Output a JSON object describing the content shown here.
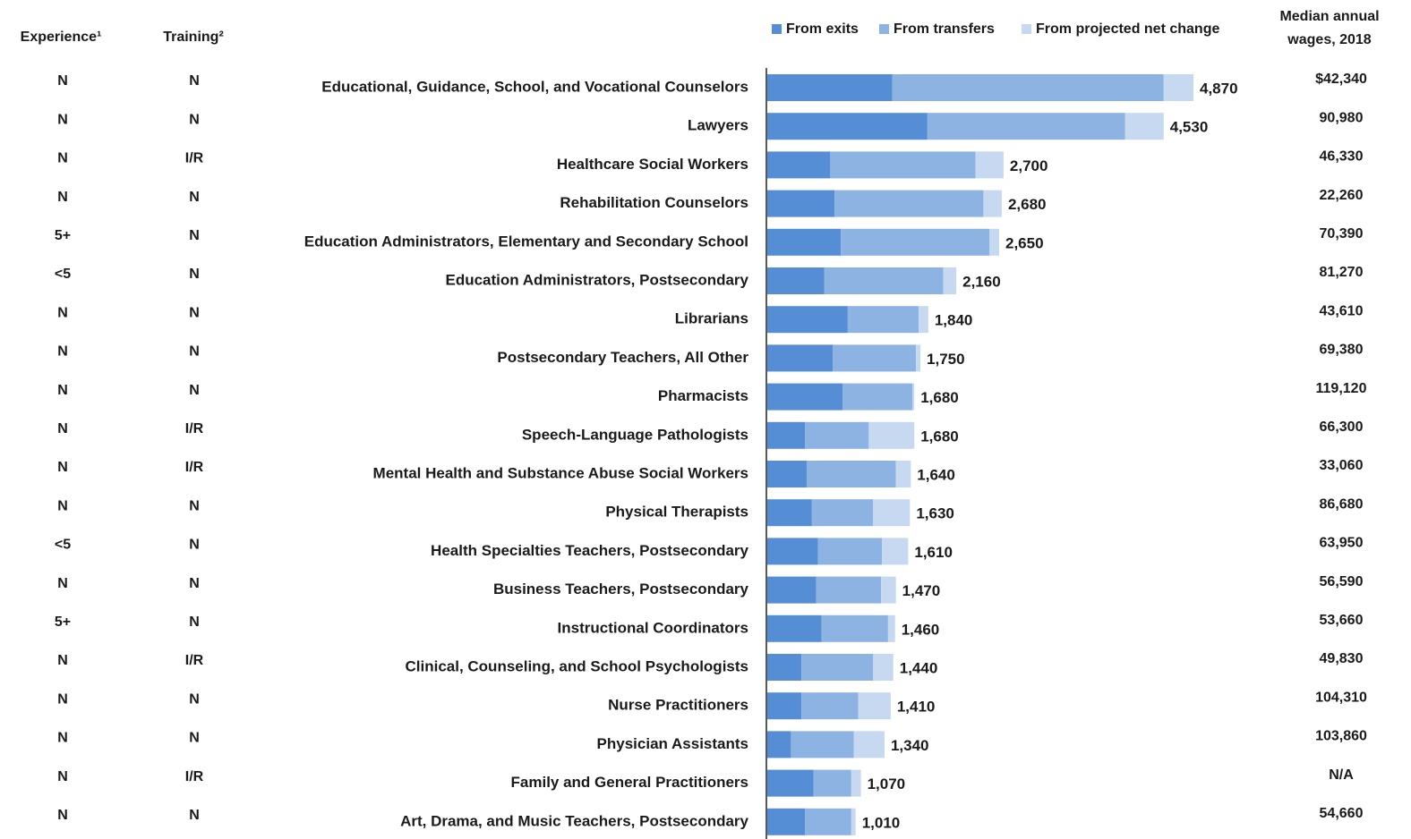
{
  "chart_data": {
    "type": "bar",
    "orientation": "horizontal",
    "stacked": true,
    "experience_header": "Experience¹",
    "training_header": "Training²",
    "wage_header": "Median annual wages, 2018",
    "categories": [
      "Educational, Guidance, School, and Vocational Counselors",
      "Lawyers",
      "Healthcare Social Workers",
      "Rehabilitation Counselors",
      "Education Administrators, Elementary and Secondary School",
      "Education Administrators, Postsecondary",
      "Librarians",
      "Postsecondary Teachers, All Other",
      "Pharmacists",
      "Speech-Language Pathologists",
      "Mental Health and Substance Abuse Social Workers",
      "Physical Therapists",
      "Health Specialties Teachers, Postsecondary",
      "Business Teachers, Postsecondary",
      "Instructional Coordinators",
      "Clinical, Counseling, and School Psychologists",
      "Nurse Practitioners",
      "Physician Assistants",
      "Family and General Practitioners",
      "Art, Drama, and Music Teachers, Postsecondary"
    ],
    "series": [
      {
        "name": "From exits",
        "color": "#558ed5",
        "values": [
          1430,
          1830,
          720,
          770,
          840,
          650,
          920,
          750,
          860,
          430,
          450,
          510,
          580,
          560,
          620,
          390,
          390,
          270,
          530,
          430
        ]
      },
      {
        "name": "From transfers",
        "color": "#8db3e2",
        "values": [
          3100,
          2260,
          1660,
          1700,
          1700,
          1360,
          810,
          950,
          800,
          730,
          1020,
          700,
          730,
          740,
          760,
          820,
          650,
          720,
          430,
          530
        ]
      },
      {
        "name": "From projected net change",
        "color": "#c6d9f1",
        "values": [
          340,
          440,
          320,
          210,
          110,
          150,
          110,
          50,
          20,
          520,
          170,
          420,
          300,
          170,
          80,
          230,
          370,
          350,
          110,
          50
        ]
      }
    ],
    "totals": [
      4870,
      4530,
      2700,
      2680,
      2650,
      2160,
      1840,
      1750,
      1680,
      1680,
      1640,
      1630,
      1610,
      1470,
      1460,
      1440,
      1410,
      1340,
      1070,
      1010
    ],
    "total_labels": [
      "4,870",
      "4,530",
      "2,700",
      "2,680",
      "2,650",
      "2,160",
      "1,840",
      "1,750",
      "1,680",
      "1,680",
      "1,640",
      "1,630",
      "1,610",
      "1,470",
      "1,460",
      "1,440",
      "1,410",
      "1,340",
      "1,070",
      "1,010"
    ],
    "experience": [
      "N",
      "N",
      "N",
      "N",
      "5+",
      "<5",
      "N",
      "N",
      "N",
      "N",
      "N",
      "N",
      "<5",
      "N",
      "5+",
      "N",
      "N",
      "N",
      "N",
      "N"
    ],
    "training": [
      "N",
      "N",
      "I/R",
      "N",
      "N",
      "N",
      "N",
      "N",
      "N",
      "I/R",
      "I/R",
      "N",
      "N",
      "N",
      "N",
      "I/R",
      "N",
      "N",
      "I/R",
      "N"
    ],
    "wages": [
      "$42,340",
      "90,980",
      "46,330",
      "22,260",
      "70,390",
      "81,270",
      "43,610",
      "69,380",
      "119,120",
      "66,300",
      "33,060",
      "86,680",
      "63,950",
      "56,590",
      "53,660",
      "49,830",
      "104,310",
      "103,860",
      "N/A",
      "54,660"
    ],
    "xlim": [
      0,
      5000
    ]
  }
}
